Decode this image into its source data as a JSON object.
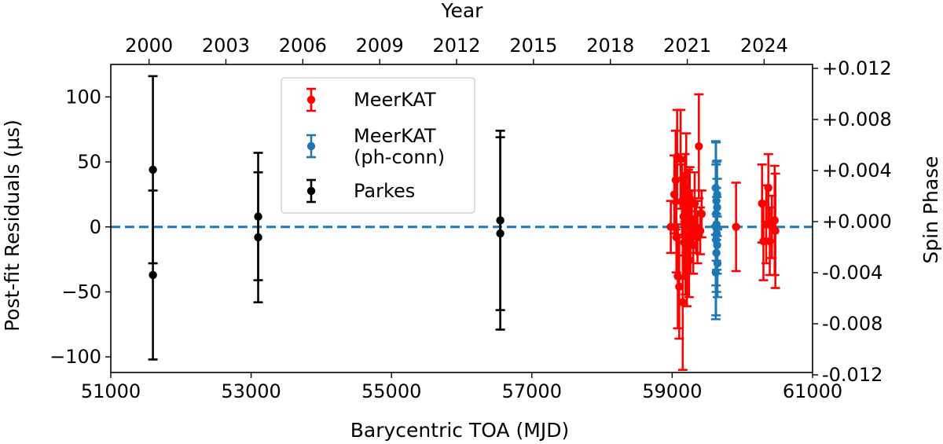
{
  "chart_data": {
    "type": "scatter",
    "xlabel": "Barycentric TOA (MJD)",
    "ylabel": "Post-fit Residuals (µs)",
    "top_xlabel": "Year",
    "right_ylabel": "Spin Phase",
    "xlim": [
      51000,
      61000
    ],
    "ylim": [
      -112,
      125
    ],
    "x_ticks": [
      {
        "v": 51000,
        "label": "51000"
      },
      {
        "v": 53000,
        "label": "53000"
      },
      {
        "v": 55000,
        "label": "55000"
      },
      {
        "v": 57000,
        "label": "57000"
      },
      {
        "v": 59000,
        "label": "59000"
      },
      {
        "v": 61000,
        "label": "61000"
      }
    ],
    "y_ticks": [
      {
        "v": 100,
        "label": "100"
      },
      {
        "v": 50,
        "label": "50"
      },
      {
        "v": 0,
        "label": "0"
      },
      {
        "v": -50,
        "label": "−50"
      },
      {
        "v": -100,
        "label": "−100"
      }
    ],
    "top_ticks": [
      {
        "v": 51545,
        "label": "2000"
      },
      {
        "v": 52640,
        "label": "2003"
      },
      {
        "v": 53736,
        "label": "2006"
      },
      {
        "v": 54832,
        "label": "2009"
      },
      {
        "v": 55927,
        "label": "2012"
      },
      {
        "v": 57023,
        "label": "2015"
      },
      {
        "v": 58119,
        "label": "2018"
      },
      {
        "v": 59215,
        "label": "2021"
      },
      {
        "v": 60310,
        "label": "2024"
      }
    ],
    "right_ticks": [
      {
        "v": 120,
        "label": "+0.012"
      },
      {
        "v": 80,
        "label": "+0.008"
      },
      {
        "v": 40,
        "label": "+0.004"
      },
      {
        "v": 0,
        "label": "+0.000"
      },
      {
        "v": -40,
        "label": "-0.004"
      },
      {
        "v": -80,
        "label": "-0.008"
      },
      {
        "v": -120,
        "label": "-0.012"
      }
    ],
    "reference_line": {
      "y": 0,
      "color": "#1f77b4",
      "style": "dashed"
    },
    "legend": {
      "position": "upper-center",
      "entries": [
        {
          "label": [
            "MeerKAT"
          ],
          "color": "#ff0000"
        },
        {
          "label": [
            "MeerKAT",
            "(ph-conn)"
          ],
          "color": "#1f77b4"
        },
        {
          "label": [
            "Parkes"
          ],
          "color": "#000000"
        }
      ]
    },
    "series": [
      {
        "name": "Parkes",
        "color": "#000000",
        "points": [
          [
            51600,
            44,
            72
          ],
          [
            51600,
            -37,
            65
          ],
          [
            53100,
            8,
            49
          ],
          [
            53100,
            -8,
            50
          ],
          [
            56550,
            5,
            69
          ],
          [
            56550,
            -5,
            74
          ]
        ]
      },
      {
        "name": "MeerKAT",
        "color": "#ff0000",
        "points": [
          [
            58980,
            0,
            20
          ],
          [
            59030,
            25,
            30
          ],
          [
            59050,
            36,
            38
          ],
          [
            59060,
            -8,
            27
          ],
          [
            59070,
            54,
            36
          ],
          [
            59080,
            -38,
            40
          ],
          [
            59100,
            -46,
            40
          ],
          [
            59120,
            52,
            38
          ],
          [
            59140,
            20,
            28
          ],
          [
            59150,
            -58,
            52
          ],
          [
            59160,
            8,
            30
          ],
          [
            59170,
            -12,
            28
          ],
          [
            59180,
            30,
            26
          ],
          [
            59190,
            -20,
            32
          ],
          [
            59200,
            40,
            32
          ],
          [
            59210,
            -33,
            28
          ],
          [
            59220,
            2,
            26
          ],
          [
            59230,
            14,
            30
          ],
          [
            59240,
            -26,
            28
          ],
          [
            59250,
            22,
            24
          ],
          [
            59260,
            -10,
            26
          ],
          [
            59280,
            6,
            22
          ],
          [
            59300,
            -14,
            22
          ],
          [
            59320,
            18,
            24
          ],
          [
            59340,
            0,
            20
          ],
          [
            59360,
            -8,
            20
          ],
          [
            59380,
            62,
            40
          ],
          [
            59400,
            -3,
            18
          ],
          [
            59420,
            10,
            18
          ],
          [
            59910,
            0,
            34
          ],
          [
            60280,
            18,
            30
          ],
          [
            60300,
            -11,
            30
          ],
          [
            60340,
            2,
            30
          ],
          [
            60370,
            30,
            26
          ],
          [
            60390,
            -11,
            26
          ],
          [
            60420,
            0,
            24
          ],
          [
            60460,
            5,
            42
          ],
          [
            60470,
            -3,
            44
          ]
        ]
      },
      {
        "name": "MeerKAT (ph-conn)",
        "color": "#1f77b4",
        "points": [
          [
            59620,
            30,
            36
          ],
          [
            59620,
            -35,
            36
          ],
          [
            59625,
            10,
            55
          ],
          [
            59625,
            -10,
            58
          ],
          [
            59630,
            20,
            30
          ],
          [
            59630,
            -20,
            30
          ],
          [
            59630,
            2,
            28
          ],
          [
            59635,
            -5,
            28
          ],
          [
            59640,
            15,
            22
          ],
          [
            59640,
            -14,
            22
          ],
          [
            59640,
            25,
            26
          ],
          [
            59645,
            -28,
            26
          ]
        ]
      }
    ]
  }
}
